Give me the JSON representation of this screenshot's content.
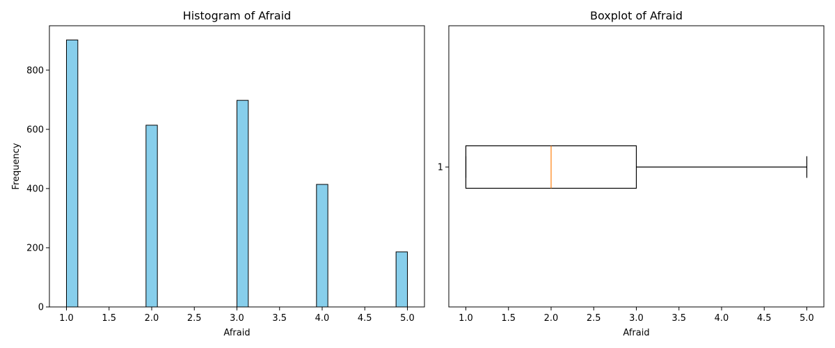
{
  "chart_data": [
    {
      "type": "bar",
      "title": "Histogram of Afraid",
      "xlabel": "Afraid",
      "ylabel": "Frequency",
      "xlim": [
        0.8,
        5.2
      ],
      "ylim": [
        0,
        950
      ],
      "xticks": [
        1.0,
        1.5,
        2.0,
        2.5,
        3.0,
        3.5,
        4.0,
        4.5,
        5.0
      ],
      "xtick_labels": [
        "1.0",
        "1.5",
        "2.0",
        "2.5",
        "3.0",
        "3.5",
        "4.0",
        "4.5",
        "5.0"
      ],
      "yticks": [
        0,
        200,
        400,
        600,
        800
      ],
      "ytick_labels": [
        "0",
        "200",
        "400",
        "600",
        "800"
      ],
      "bins": [
        {
          "x0": 1.0,
          "x1": 1.1333,
          "value": 902
        },
        {
          "x0": 1.9333,
          "x1": 2.0667,
          "value": 614
        },
        {
          "x0": 3.0,
          "x1": 3.1333,
          "value": 698
        },
        {
          "x0": 3.9333,
          "x1": 4.0667,
          "value": 414
        },
        {
          "x0": 4.8667,
          "x1": 5.0,
          "value": 186
        }
      ],
      "bar_color": "#87ceeb",
      "edge_color": "#000000",
      "grid": false
    },
    {
      "type": "boxplot",
      "title": "Boxplot of Afraid",
      "xlabel": "Afraid",
      "orientation": "horizontal",
      "xlim": [
        0.8,
        5.2
      ],
      "xticks": [
        1.0,
        1.5,
        2.0,
        2.5,
        3.0,
        3.5,
        4.0,
        4.5,
        5.0
      ],
      "xtick_labels": [
        "1.0",
        "1.5",
        "2.0",
        "2.5",
        "3.0",
        "3.5",
        "4.0",
        "4.5",
        "5.0"
      ],
      "ytick_labels": [
        "1"
      ],
      "stats": {
        "whisker_low": 1.0,
        "q1": 1.0,
        "median": 2.0,
        "q3": 3.0,
        "whisker_high": 5.0
      },
      "median_color": "#ff7f0e",
      "line_color": "#000000",
      "grid": false
    }
  ]
}
